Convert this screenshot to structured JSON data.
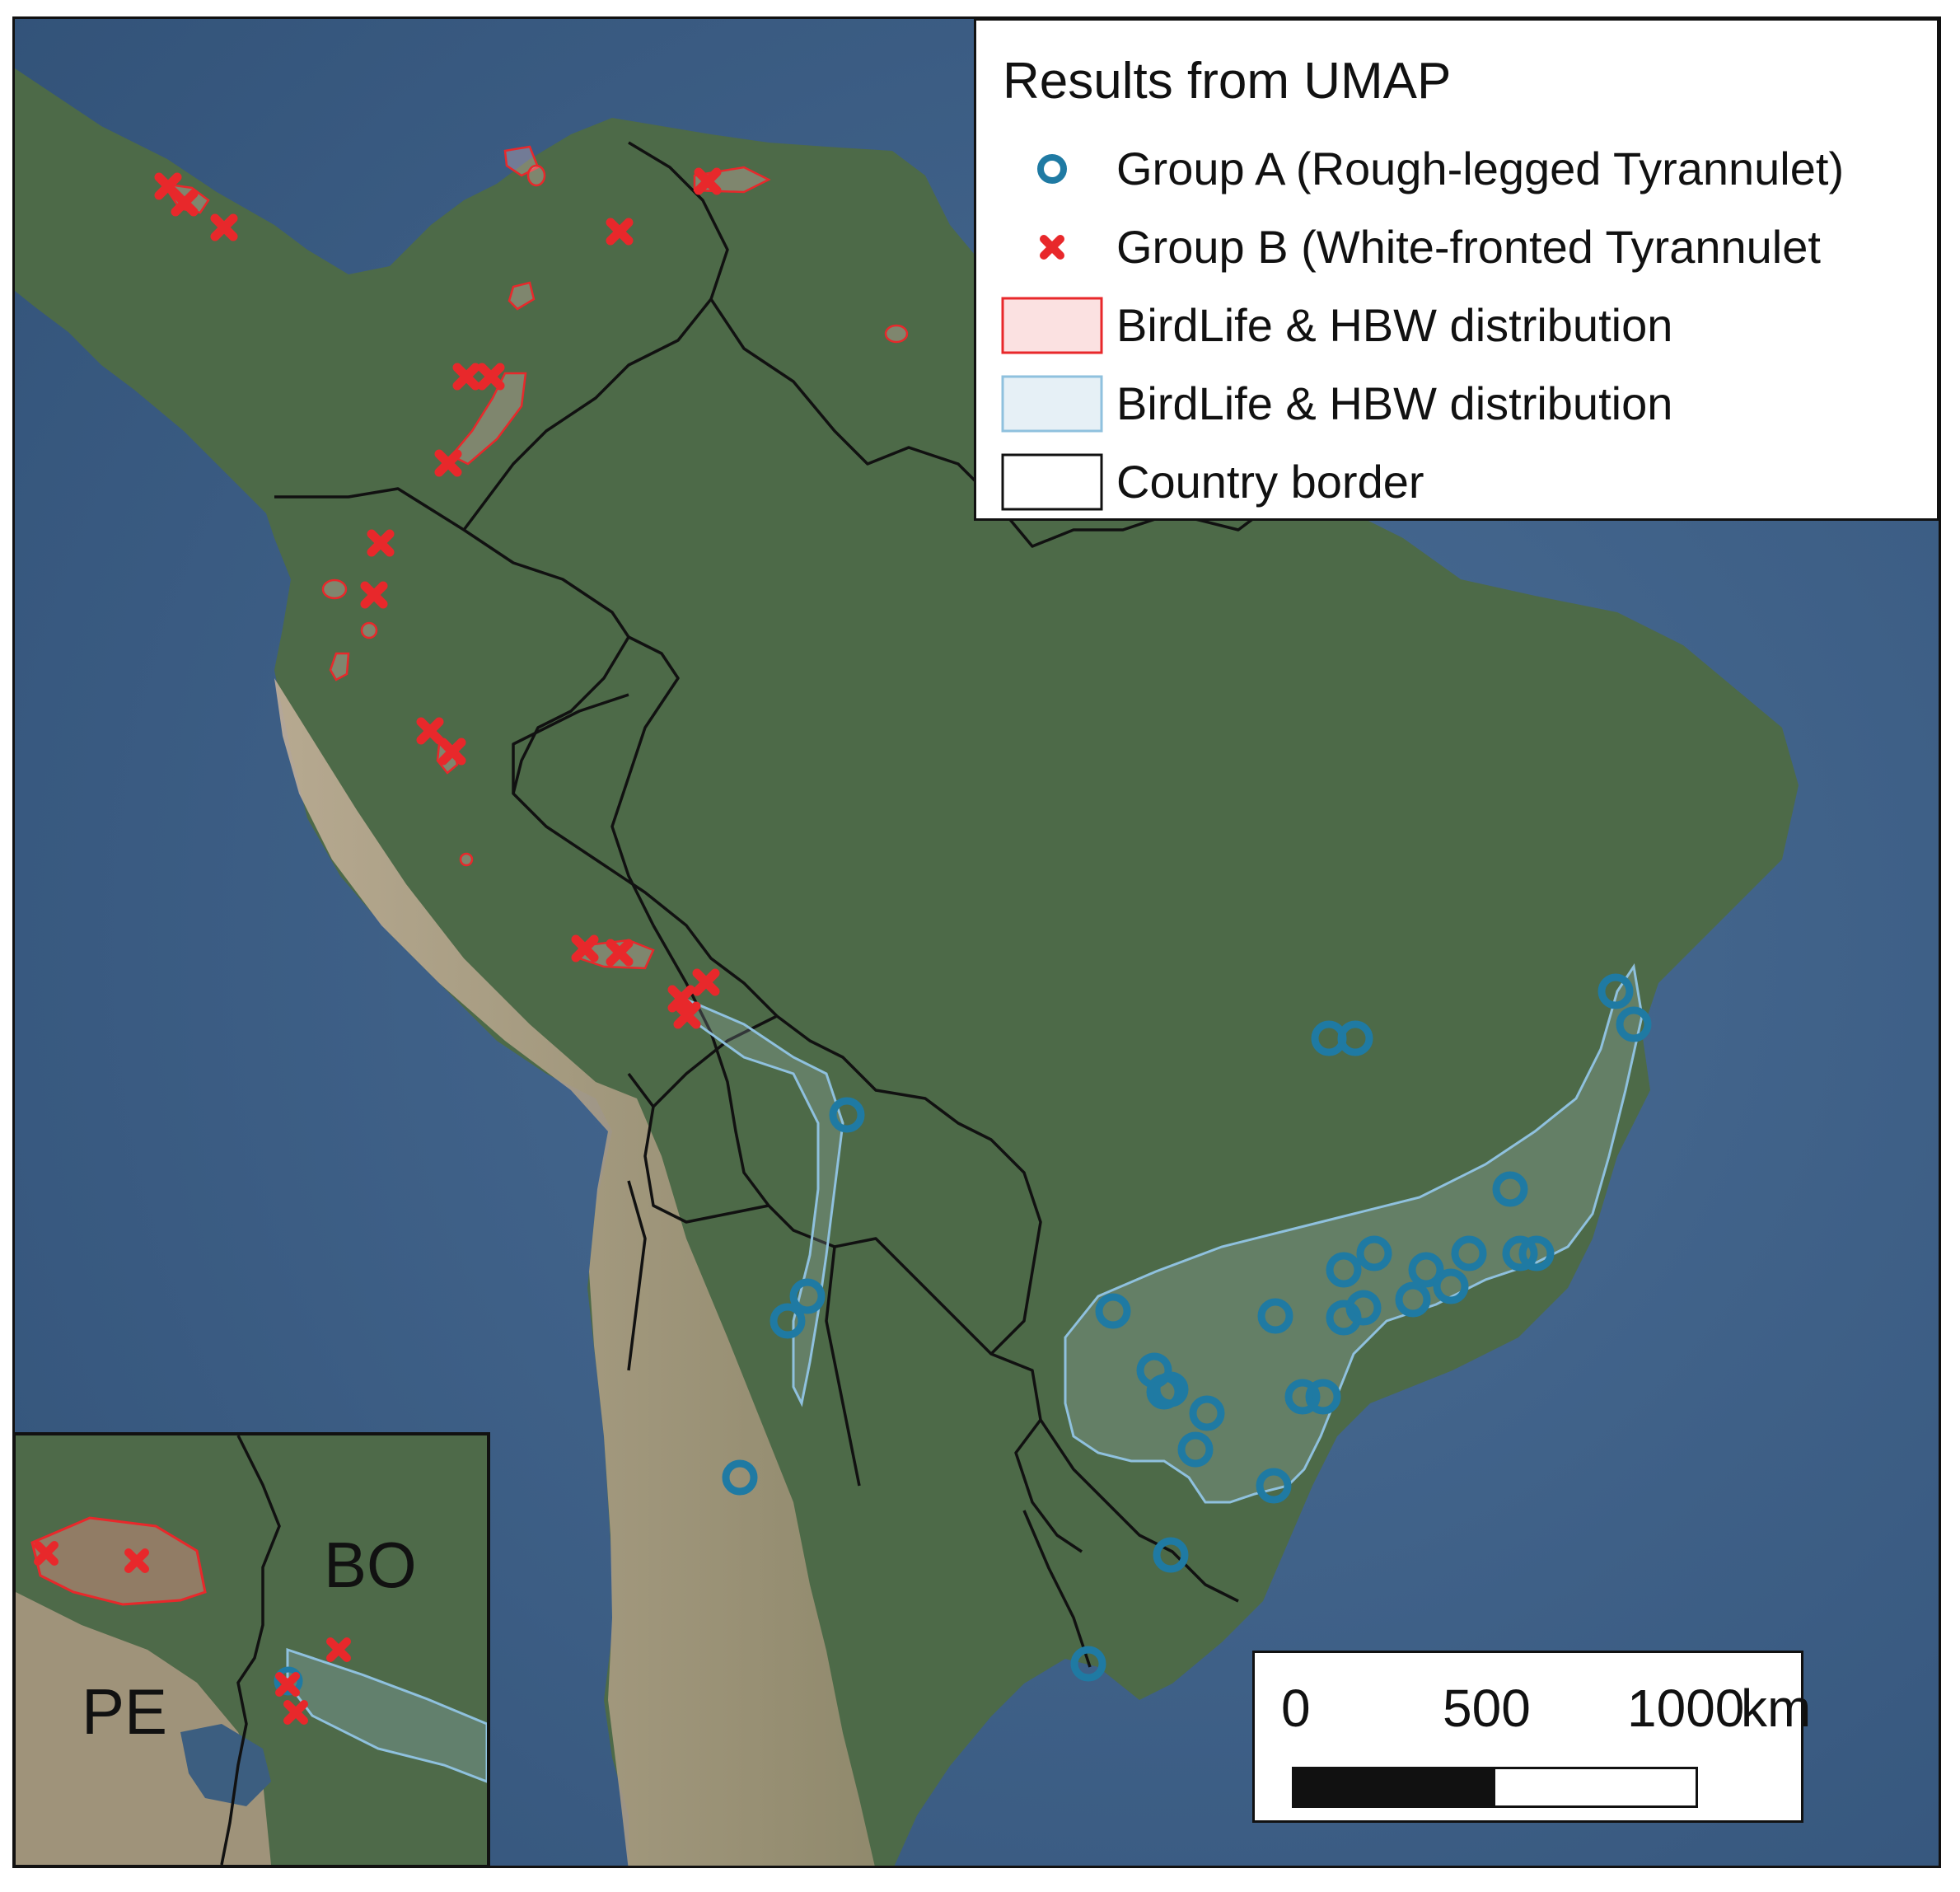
{
  "legend": {
    "title": "Results from UMAP",
    "group_a_label": "Group A (Rough-legged Tyrannulet)",
    "group_b_label": "Group B (White-fronted Tyrannulet",
    "red_range_label": "BirdLife & HBW distribution",
    "blue_range_label": "BirdLife & HBW distribution",
    "border_label": "Country border"
  },
  "scalebar": {
    "label_0": "0",
    "label_500": "500",
    "label_1000": "1000",
    "unit": "km"
  },
  "inset": {
    "label_bo": "BO",
    "label_pe": "PE"
  },
  "colors": {
    "group_a": "#1f7aa3",
    "group_b": "#e8282b",
    "red_range_fill": "#f7d6d6",
    "blue_range_fill": "#e1eef6",
    "ocean": "#3d5f86",
    "land": "#4f6b47",
    "desert": "#b5a48c"
  },
  "icons": {
    "group_a_marker": "circle-icon",
    "group_b_marker": "cross-icon"
  }
}
